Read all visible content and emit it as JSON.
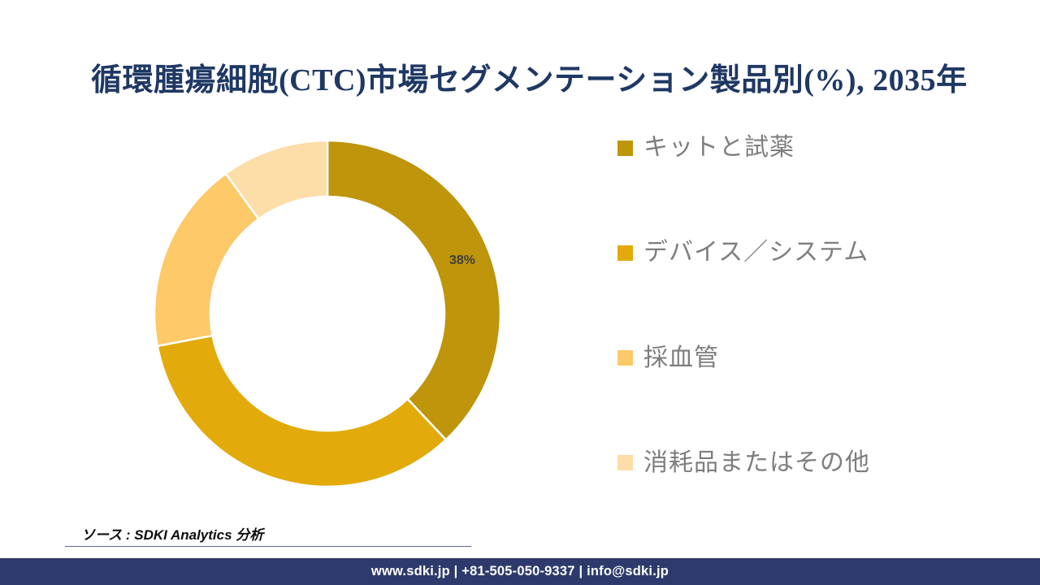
{
  "title": "循環腫瘍細胞(CTC)市場セグメンテーション製品別(%), 2035年",
  "chart_data": {
    "type": "pie",
    "style": "donut",
    "title": "循環腫瘍細胞(CTC)市場セグメンテーション製品別(%), 2035年",
    "direction": "clockwise",
    "start_angle_deg": 0,
    "legend_position": "right",
    "hole_ratio": 0.675,
    "data_label_suffix": "%",
    "segments": [
      {
        "label": "キットと試薬",
        "value": 38,
        "color": "#BE950B",
        "data_label": "38%"
      },
      {
        "label": "デバイス／システム",
        "value": 34,
        "color": "#E3AA0B",
        "data_label": null
      },
      {
        "label": "採血管",
        "value": 18,
        "color": "#FDC969",
        "data_label": null
      },
      {
        "label": "消耗品またはその他",
        "value": 10,
        "color": "#FDDDA8",
        "data_label": null
      }
    ]
  },
  "colors": {
    "title_navy": "#1F3864",
    "footer_navy": "#2D3A6B",
    "legend_text_gray": "#7E7E7E",
    "data_label_gray": "#3F3F3F",
    "background": "#FFFFFF"
  },
  "source": {
    "text": "ソース : SDKI Analytics 分析"
  },
  "footer": {
    "text": "www.sdki.jp | +81-505-050-9337 | info@sdki.jp"
  }
}
